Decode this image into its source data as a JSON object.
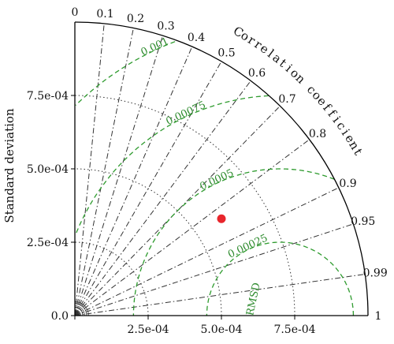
{
  "chart_data": {
    "type": "scatter",
    "variant": "taylor-diagram",
    "xlabel": "",
    "ylabel": "Standard deviation",
    "arc_label": "Correlation coefficient",
    "rmsd_axis_label": "RMSD",
    "reference_std": 0.0007,
    "sd_max": 0.001,
    "sd_ticks": [
      {
        "value": 0,
        "label": "0.0"
      },
      {
        "value": 0.00025,
        "label": "2.5e-04"
      },
      {
        "value": 0.0005,
        "label": "5.0e-04"
      },
      {
        "value": 0.00075,
        "label": "7.5e-04"
      }
    ],
    "sd_arcs": [
      0.00025,
      0.0005,
      0.00075
    ],
    "correlation_ticks": [
      "0",
      "0.1",
      "0.2",
      "0.3",
      "0.4",
      "0.5",
      "0.6",
      "0.7",
      "0.8",
      "0.9",
      "0.95",
      "0.99",
      "1"
    ],
    "rmsd_contours": [
      {
        "value": 0.00025,
        "label": "0.00025"
      },
      {
        "value": 0.0005,
        "label": "0.0005"
      },
      {
        "value": 0.00075,
        "label": "0.00075"
      },
      {
        "value": 0.001,
        "label": "0.001"
      }
    ],
    "points": [
      {
        "x": 0.0005,
        "y": 0.00033,
        "color": "#e8262c"
      }
    ],
    "colors": {
      "axis": "#000000",
      "radial": "#333333",
      "rmsd": "#2e9b2e",
      "point": "#e8262c"
    }
  }
}
